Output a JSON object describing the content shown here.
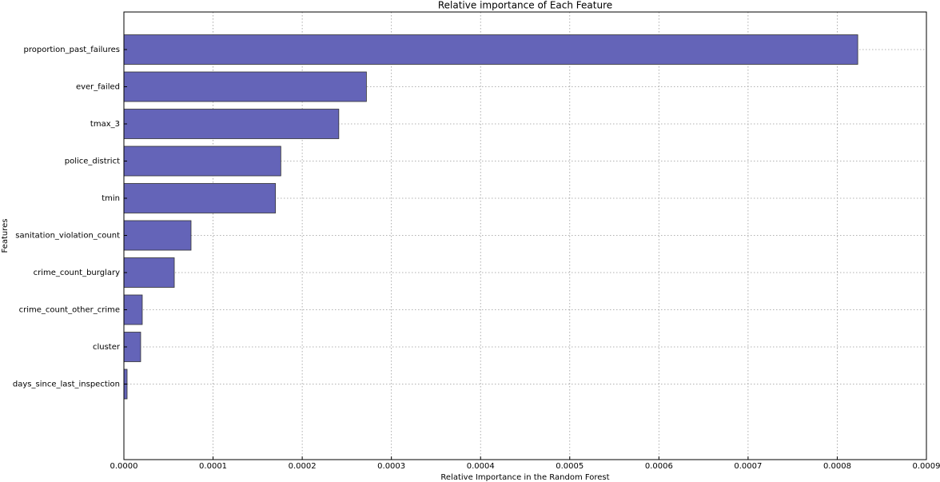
{
  "chart_data": {
    "type": "barh",
    "title": "Relative importance of Each Feature",
    "xlabel": "Relative Importance in the Random Forest",
    "ylabel": "Features",
    "categories": [
      "proportion_past_failures",
      "ever_failed",
      "tmax_3",
      "police_district",
      "tmin",
      "sanitation_violation_count",
      "crime_count_burglary",
      "crime_count_other_crime",
      "cluster",
      "days_since_last_inspection"
    ],
    "values": [
      0.000823,
      0.000272,
      0.000241,
      0.000176,
      0.00017,
      7.53e-05,
      5.65e-05,
      2.06e-05,
      1.88e-05,
      3.6e-06
    ],
    "color": "#6464b8",
    "xlim": [
      0,
      0.0009
    ],
    "xticks": [
      {
        "value": 0,
        "label": "0.0000"
      },
      {
        "value": 0.0001,
        "label": "0.0001"
      },
      {
        "value": 0.0002,
        "label": "0.0002"
      },
      {
        "value": 0.0003,
        "label": "0.0003"
      },
      {
        "value": 0.0004,
        "label": "0.0004"
      },
      {
        "value": 0.0005,
        "label": "0.0005"
      },
      {
        "value": 0.0006,
        "label": "0.0006"
      },
      {
        "value": 0.0007,
        "label": "0.0007"
      },
      {
        "value": 0.0008,
        "label": "0.0008"
      },
      {
        "value": 0.0009,
        "label": "0.0009"
      }
    ],
    "grid": true
  }
}
